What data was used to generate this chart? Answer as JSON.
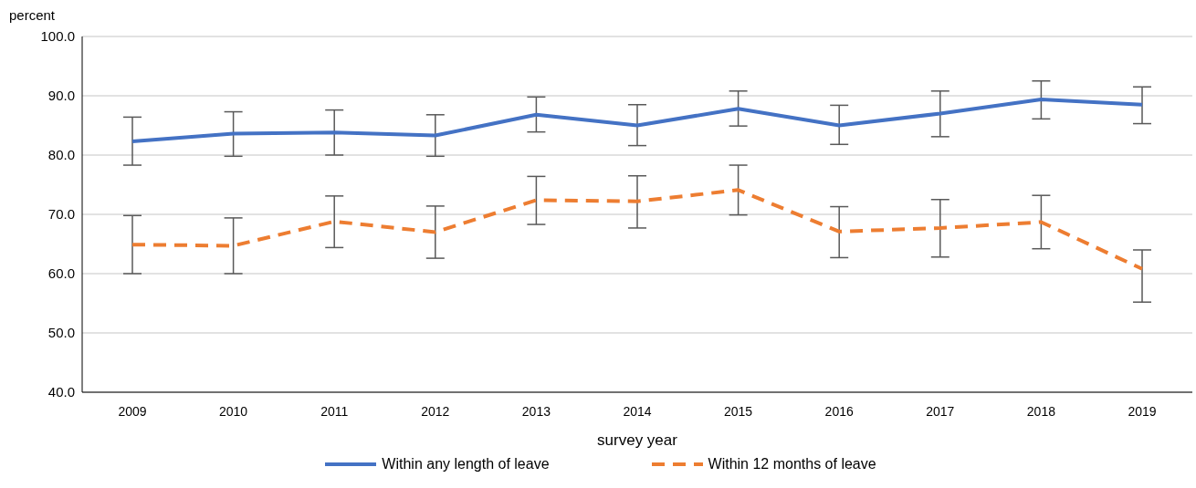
{
  "chart_data": {
    "type": "line",
    "ylabel": "percent",
    "xlabel": "survey year",
    "categories": [
      "2009",
      "2010",
      "2011",
      "2012",
      "2013",
      "2014",
      "2015",
      "2016",
      "2017",
      "2018",
      "2019"
    ],
    "series": [
      {
        "name": "Within any length of leave",
        "color": "#4472c4",
        "line_style": "solid",
        "values": [
          82.3,
          83.6,
          83.8,
          83.3,
          86.8,
          85.0,
          87.8,
          85.0,
          87.0,
          89.4,
          88.5
        ],
        "errors": [
          [
            78.3,
            86.4
          ],
          [
            79.8,
            87.3
          ],
          [
            80.0,
            87.6
          ],
          [
            79.8,
            86.8
          ],
          [
            83.9,
            89.8
          ],
          [
            81.6,
            88.5
          ],
          [
            84.9,
            90.8
          ],
          [
            81.8,
            88.4
          ],
          [
            83.1,
            90.8
          ],
          [
            86.1,
            92.5
          ],
          [
            85.3,
            91.5
          ]
        ]
      },
      {
        "name": "Within 12 months of leave",
        "color": "#ed7d31",
        "line_style": "dashed",
        "values": [
          64.9,
          64.7,
          68.8,
          67.0,
          72.4,
          72.2,
          74.1,
          67.1,
          67.7,
          68.7,
          60.8
        ],
        "errors": [
          [
            60.0,
            69.8
          ],
          [
            60.0,
            69.4
          ],
          [
            64.4,
            73.1
          ],
          [
            62.6,
            71.4
          ],
          [
            68.3,
            76.4
          ],
          [
            67.7,
            76.5
          ],
          [
            69.9,
            78.3
          ],
          [
            62.7,
            71.3
          ],
          [
            62.8,
            72.5
          ],
          [
            64.2,
            73.2
          ],
          [
            55.2,
            64.0
          ]
        ]
      }
    ],
    "ylim": [
      40,
      100
    ],
    "yticks": [
      {
        "value": 40,
        "label": "40.0"
      },
      {
        "value": 50,
        "label": "50.0"
      },
      {
        "value": 60,
        "label": "60.0"
      },
      {
        "value": 70,
        "label": "70.0"
      },
      {
        "value": 80,
        "label": "80.0"
      },
      {
        "value": 90,
        "label": "90.0"
      },
      {
        "value": 100,
        "label": "100.0"
      }
    ],
    "grid": "y",
    "legend": "bottom",
    "marker": "none"
  }
}
